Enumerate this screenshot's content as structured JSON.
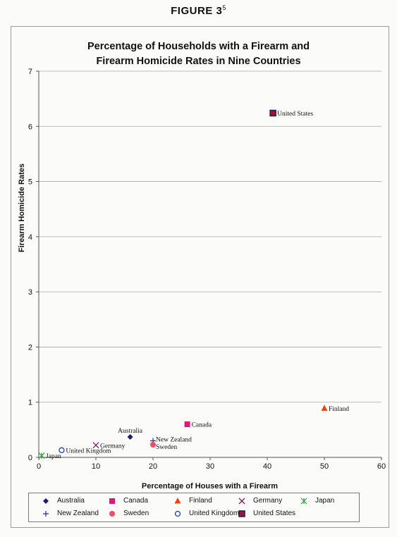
{
  "figure_label": "FIGURE 3",
  "figure_note": "5",
  "chart_data": {
    "type": "scatter",
    "title_line1": "Percentage of Households with a Firearm and",
    "title_line2": "Firearm Homicide Rates in Nine Countries",
    "xlabel": "Percentage of Houses with a Firearm",
    "ylabel": "Firearm Homicide Rates",
    "xlim": [
      0,
      60
    ],
    "ylim": [
      0,
      7
    ],
    "xticks": [
      0,
      10,
      20,
      30,
      40,
      50,
      60
    ],
    "yticks": [
      0,
      1,
      2,
      3,
      4,
      5,
      6,
      7
    ],
    "grid": "horizontal",
    "legend_position": "bottom",
    "series": [
      {
        "name": "Australia",
        "x": 16,
        "y": 0.37,
        "marker": "diamond",
        "color": "#16206b",
        "label": "Australia",
        "label_side": "above"
      },
      {
        "name": "Canada",
        "x": 26,
        "y": 0.6,
        "marker": "square",
        "color": "#e0187e",
        "label": "Canada",
        "label_side": "right"
      },
      {
        "name": "Finland",
        "x": 50,
        "y": 0.89,
        "marker": "triangle",
        "color": "#f0430f",
        "label": "Finland",
        "label_side": "right"
      },
      {
        "name": "Germany",
        "x": 10,
        "y": 0.22,
        "marker": "x",
        "color": "#7a1f5c",
        "label": "Germany",
        "label_side": "right"
      },
      {
        "name": "Japan",
        "x": 0.5,
        "y": 0.03,
        "marker": "star",
        "color": "#2f9a3c",
        "label": "Japan",
        "label_side": "right"
      },
      {
        "name": "New Zealand",
        "x": 20,
        "y": 0.3,
        "marker": "plus",
        "color": "#24308a",
        "label": "New Zealand",
        "label_side": "right-up"
      },
      {
        "name": "Sweden",
        "x": 20,
        "y": 0.23,
        "marker": "circle-filled",
        "color": "#f24a68",
        "label": "Sweden",
        "label_side": "right-down"
      },
      {
        "name": "United Kingdom",
        "x": 4,
        "y": 0.13,
        "marker": "circle-open",
        "color": "#1a3fb5",
        "label": "United Kingdom",
        "label_side": "right"
      },
      {
        "name": "United States",
        "x": 41,
        "y": 6.24,
        "marker": "square-dark",
        "color": "#a0152a",
        "label": "United States",
        "label_side": "right"
      }
    ]
  }
}
